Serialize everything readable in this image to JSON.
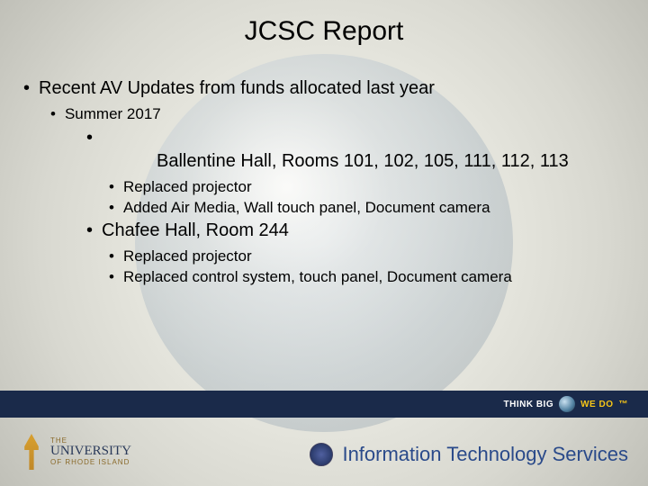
{
  "title": "JCSC Report",
  "bullets": {
    "lvl1": "Recent AV Updates from funds allocated last year",
    "lvl2": "Summer 2017",
    "loc1": {
      "name": "Ballentine Hall, Rooms 101, 102, 105, 111, 112, 113",
      "items": [
        "Replaced projector",
        "Added Air Media, Wall touch panel, Document camera"
      ]
    },
    "loc2": {
      "name": "Chafee Hall, Room 244",
      "items": [
        "Replaced projector",
        "Replaced control system, touch panel, Document camera"
      ]
    }
  },
  "branding": {
    "think_big": "THINK BIG",
    "we_do": "WE DO",
    "the": "THE",
    "university": "UNIVERSITY",
    "of_ri": "OF RHODE ISLAND",
    "footer_title": "Information Technology Services"
  },
  "colors": {
    "band": "#1a2a4a",
    "accent_gold": "#f5c518",
    "footer_text": "#2a4a8a"
  }
}
